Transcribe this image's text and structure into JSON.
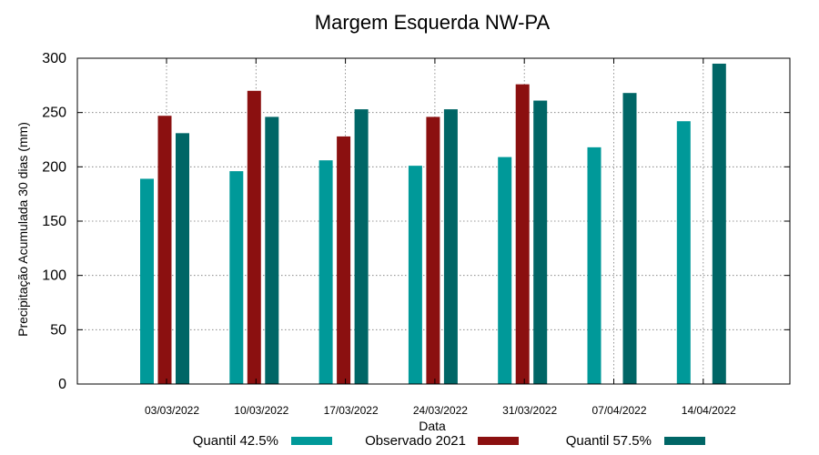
{
  "chart_data": {
    "type": "bar",
    "title": "Margem Esquerda NW-PA",
    "xlabel": "Data",
    "ylabel": "Precipitação Acumulada 30 dias (mm)",
    "ylim": [
      0,
      300
    ],
    "yticks": [
      0,
      50,
      100,
      150,
      200,
      250,
      300
    ],
    "grid": true,
    "legend_position": "bottom",
    "categories": [
      "03/03/2022",
      "10/03/2022",
      "17/03/2022",
      "24/03/2022",
      "31/03/2022",
      "07/04/2022",
      "14/04/2022"
    ],
    "series": [
      {
        "name": "Quantil 42.5%",
        "color": "#009999",
        "values": [
          189,
          196,
          206,
          201,
          209,
          218,
          242
        ]
      },
      {
        "name": "Observado 2021",
        "color": "#8B1010",
        "values": [
          247,
          270,
          228,
          246,
          276,
          null,
          null
        ]
      },
      {
        "name": "Quantil 57.5%",
        "color": "#006666",
        "values": [
          231,
          246,
          253,
          253,
          261,
          268,
          295
        ]
      }
    ]
  }
}
